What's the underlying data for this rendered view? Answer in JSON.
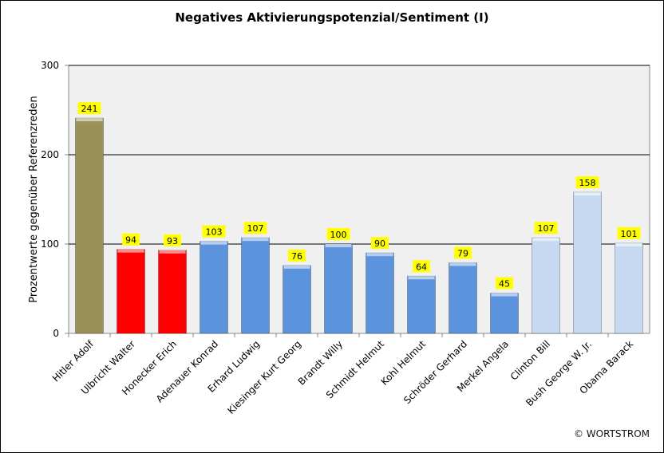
{
  "chart_data": {
    "type": "bar",
    "title": "Negatives Aktivierungspotenzial/Sentiment (I)",
    "xlabel": "",
    "ylabel": "Prozentwerte  gegenüber Referenzreden",
    "ylim": [
      0,
      300
    ],
    "yticks": [
      0,
      100,
      200,
      300
    ],
    "grid": true,
    "categories": [
      "Hitler Adolf",
      "Ulbricht Walter",
      "Honecker Erich",
      "Adenauer Konrad",
      "Erhard Ludwig",
      "Kiesinger Kurt Georg",
      "Brandt Willy",
      "Schmidt Helmut",
      "Kohl Helmut",
      "Schröder Gerhard",
      "Merkel Angela",
      "Clinton Bill",
      "Bush George W. Jr.",
      "Obama Barack"
    ],
    "values": [
      241,
      94,
      93,
      103,
      107,
      76,
      100,
      90,
      64,
      79,
      45,
      107,
      158,
      101
    ],
    "bar_colors": [
      "#9a9058",
      "#ff0000",
      "#ff0000",
      "#5b93dc",
      "#5b93dc",
      "#5b93dc",
      "#5b93dc",
      "#5b93dc",
      "#5b93dc",
      "#5b93dc",
      "#5b93dc",
      "#c6d9f1",
      "#c6d9f1",
      "#c6d9f1"
    ],
    "label_background": "#ffff00",
    "plot_background": "#f0f0f0"
  },
  "copyright": "© WORTSTROM"
}
